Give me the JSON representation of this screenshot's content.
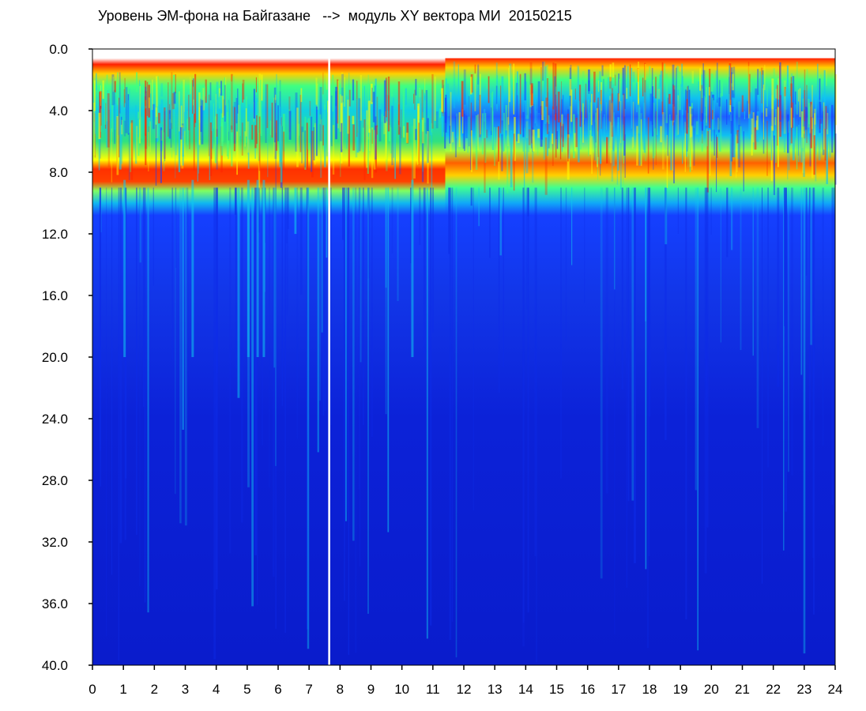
{
  "chart_data": {
    "type": "heatmap",
    "title": "Уровень ЭМ-фона на Байгазане   -->  модуль XY вектора МИ  20150215",
    "xlabel": "",
    "ylabel": "",
    "xlim": [
      0,
      24
    ],
    "ylim": [
      40.0,
      0.0
    ],
    "x_ticks": [
      "0",
      "1",
      "2",
      "3",
      "4",
      "5",
      "6",
      "7",
      "8",
      "9",
      "10",
      "11",
      "12",
      "13",
      "14",
      "15",
      "16",
      "17",
      "18",
      "19",
      "20",
      "21",
      "22",
      "23",
      "24"
    ],
    "y_ticks": [
      "0.0",
      "4.0",
      "8.0",
      "12.0",
      "16.0",
      "20.0",
      "24.0",
      "28.0",
      "32.0",
      "36.0",
      "40.0"
    ],
    "colormap": [
      "#0a1ccc",
      "#1540ff",
      "#10c8f0",
      "#40ff80",
      "#ffff00",
      "#ff2000",
      "#ffffff"
    ],
    "bands": [
      {
        "x": [
          0.0,
          11.4
        ],
        "y": [
          1.3,
          6.2
        ],
        "level": "medium",
        "color": "#30e080"
      },
      {
        "x": [
          11.4,
          24.0
        ],
        "y": [
          0.6,
          6.0
        ],
        "level": "low",
        "color": "#1e60ff"
      },
      {
        "x": [
          0.0,
          24.0
        ],
        "y": [
          6.2,
          8.6
        ],
        "level": "high",
        "color": "#ff3000"
      },
      {
        "x": [
          0.0,
          24.0
        ],
        "y": [
          8.6,
          10.0
        ],
        "level": "medium",
        "color": "#20e0c0"
      },
      {
        "x": [
          0.0,
          24.0
        ],
        "y": [
          12.5,
          15.0
        ],
        "level": "low",
        "color": "#3a70ff"
      },
      {
        "x": [
          0.0,
          24.0
        ],
        "y": [
          10.0,
          40.0
        ],
        "level": "background",
        "color": "#0a1ccc"
      }
    ],
    "gap_line": {
      "x": 7.65,
      "color": "#ffffff"
    }
  }
}
